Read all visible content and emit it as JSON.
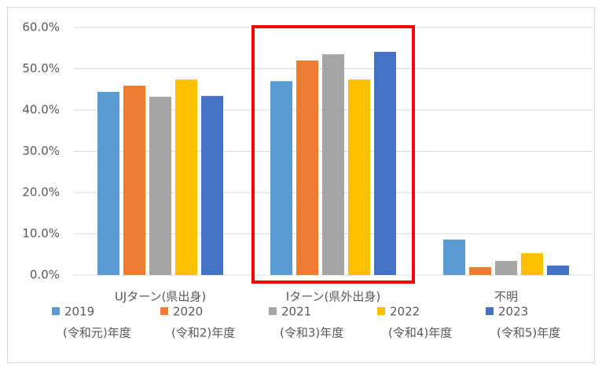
{
  "chart_data": {
    "type": "bar",
    "categories": [
      "UJターン(県出身)",
      "Iターン(県外出身)",
      "不明"
    ],
    "series": [
      {
        "name": "2019",
        "era": "(令和元)年度",
        "color": "#5b9bd5",
        "values": [
          44.4,
          47.0,
          8.6
        ]
      },
      {
        "name": "2020",
        "era": "(令和2)年度",
        "color": "#ed7d31",
        "values": [
          45.9,
          52.0,
          1.9
        ]
      },
      {
        "name": "2021",
        "era": "(令和3)年度",
        "color": "#a5a5a5",
        "values": [
          43.2,
          53.5,
          3.4
        ]
      },
      {
        "name": "2022",
        "era": "(令和4)年度",
        "color": "#ffc000",
        "values": [
          47.4,
          47.4,
          5.3
        ]
      },
      {
        "name": "2023",
        "era": "(令和5)年度",
        "color": "#4472c4",
        "values": [
          43.4,
          54.1,
          2.3
        ]
      }
    ],
    "ylim": [
      0,
      60
    ],
    "yticks": [
      {
        "value": 0,
        "label": "0.0%"
      },
      {
        "value": 10,
        "label": "10.0%"
      },
      {
        "value": 20,
        "label": "20.0%"
      },
      {
        "value": 30,
        "label": "30.0%"
      },
      {
        "value": 40,
        "label": "40.0%"
      },
      {
        "value": 50,
        "label": "50.0%"
      },
      {
        "value": 60,
        "label": "60.0%"
      }
    ],
    "grid": true,
    "legend": "bottom",
    "highlight_category": 1,
    "highlight_color": "#ff0000"
  }
}
